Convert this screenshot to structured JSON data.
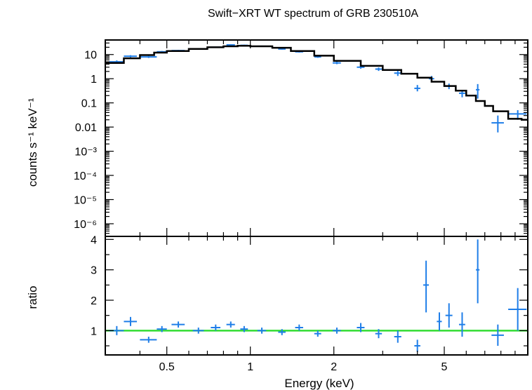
{
  "colors": {
    "data": "#1f7ee8",
    "model": "#000000",
    "unity": "#33dd33",
    "axes": "#000000"
  },
  "chart_data": [
    {
      "type": "scatter",
      "title": "Swift−XRT WT spectrum of GRB 230510A",
      "xlabel": "Energy (keV)",
      "ylabel": "counts s⁻¹ keV⁻¹",
      "x_scale": "log",
      "y_scale": "log",
      "xlim": [
        0.3,
        10
      ],
      "ylim": [
        3e-07,
        40
      ],
      "x_ticks": [
        {
          "value": 0.5,
          "label": "0.5"
        },
        {
          "value": 1,
          "label": "1"
        },
        {
          "value": 2,
          "label": "2"
        },
        {
          "value": 5,
          "label": "5"
        }
      ],
      "y_ticks": [
        {
          "value": 10,
          "label": "10"
        },
        {
          "value": 1,
          "label": "1"
        },
        {
          "value": 0.1,
          "label": "0.1"
        },
        {
          "value": 0.01,
          "label": "0.01"
        },
        {
          "value": 0.001,
          "label": "10⁻³"
        },
        {
          "value": 0.0001,
          "label": "10⁻⁴"
        },
        {
          "value": 1e-05,
          "label": "10⁻⁵"
        },
        {
          "value": 1e-06,
          "label": "10⁻⁶"
        }
      ],
      "series": [
        {
          "kind": "data",
          "points": [
            {
              "x": 0.33,
              "y": 5.0,
              "xlo": 0.31,
              "xhi": 0.35,
              "ylo": 4.3,
              "yhi": 5.7
            },
            {
              "x": 0.37,
              "y": 8.5,
              "xlo": 0.35,
              "xhi": 0.39,
              "ylo": 7.6,
              "yhi": 9.4
            },
            {
              "x": 0.43,
              "y": 8.0,
              "xlo": 0.4,
              "xhi": 0.46,
              "ylo": 7.2,
              "yhi": 8.8
            },
            {
              "x": 0.48,
              "y": 13.0,
              "xlo": 0.46,
              "xhi": 0.5,
              "ylo": 12.0,
              "yhi": 14.0
            },
            {
              "x": 0.55,
              "y": 14.5,
              "xlo": 0.52,
              "xhi": 0.58,
              "ylo": 13.5,
              "yhi": 15.5
            },
            {
              "x": 0.65,
              "y": 17.0,
              "xlo": 0.62,
              "xhi": 0.68,
              "ylo": 16.0,
              "yhi": 18.0
            },
            {
              "x": 0.75,
              "y": 20.0,
              "xlo": 0.72,
              "xhi": 0.78,
              "ylo": 19.0,
              "yhi": 21.0
            },
            {
              "x": 0.85,
              "y": 25.0,
              "xlo": 0.82,
              "xhi": 0.88,
              "ylo": 23.5,
              "yhi": 26.5
            },
            {
              "x": 0.95,
              "y": 24.0,
              "xlo": 0.92,
              "xhi": 0.98,
              "ylo": 22.5,
              "yhi": 25.5
            },
            {
              "x": 1.1,
              "y": 22.0,
              "xlo": 1.06,
              "xhi": 1.14,
              "ylo": 20.5,
              "yhi": 23.5
            },
            {
              "x": 1.3,
              "y": 17.0,
              "xlo": 1.26,
              "xhi": 1.34,
              "ylo": 16.0,
              "yhi": 18.0
            },
            {
              "x": 1.5,
              "y": 13.0,
              "xlo": 1.45,
              "xhi": 1.55,
              "ylo": 12.0,
              "yhi": 14.0
            },
            {
              "x": 1.75,
              "y": 8.0,
              "xlo": 1.7,
              "xhi": 1.8,
              "ylo": 7.3,
              "yhi": 8.7
            },
            {
              "x": 2.05,
              "y": 4.5,
              "xlo": 1.98,
              "xhi": 2.12,
              "ylo": 4.0,
              "yhi": 5.0
            },
            {
              "x": 2.5,
              "y": 3.0,
              "xlo": 2.42,
              "xhi": 2.58,
              "ylo": 2.6,
              "yhi": 3.4
            },
            {
              "x": 2.9,
              "y": 2.5,
              "xlo": 2.82,
              "xhi": 2.98,
              "ylo": 2.1,
              "yhi": 2.9
            },
            {
              "x": 3.4,
              "y": 1.7,
              "xlo": 3.3,
              "xhi": 3.5,
              "ylo": 1.3,
              "yhi": 2.1
            },
            {
              "x": 4.0,
              "y": 0.4,
              "xlo": 3.9,
              "xhi": 4.1,
              "ylo": 0.3,
              "yhi": 0.55
            },
            {
              "x": 4.5,
              "y": 1.0,
              "xlo": 4.4,
              "xhi": 4.6,
              "ylo": 0.75,
              "yhi": 1.3
            },
            {
              "x": 5.2,
              "y": 0.5,
              "xlo": 5.05,
              "xhi": 5.35,
              "ylo": 0.37,
              "yhi": 0.63
            },
            {
              "x": 5.8,
              "y": 0.25,
              "xlo": 5.65,
              "xhi": 5.95,
              "ylo": 0.17,
              "yhi": 0.33
            },
            {
              "x": 6.6,
              "y": 0.35,
              "xlo": 6.5,
              "xhi": 6.7,
              "ylo": 0.15,
              "yhi": 0.6
            },
            {
              "x": 7.8,
              "y": 0.015,
              "xlo": 7.4,
              "xhi": 8.2,
              "ylo": 0.006,
              "yhi": 0.03
            },
            {
              "x": 9.2,
              "y": 0.035,
              "xlo": 8.5,
              "xhi": 9.9,
              "ylo": 0.02,
              "yhi": 0.05
            }
          ]
        },
        {
          "kind": "model",
          "points": [
            {
              "x": 0.3,
              "y": 4.5
            },
            {
              "x": 0.35,
              "y": 7.0
            },
            {
              "x": 0.4,
              "y": 9.5
            },
            {
              "x": 0.45,
              "y": 12.0
            },
            {
              "x": 0.5,
              "y": 14.0
            },
            {
              "x": 0.6,
              "y": 17.0
            },
            {
              "x": 0.7,
              "y": 20.0
            },
            {
              "x": 0.8,
              "y": 22.0
            },
            {
              "x": 0.9,
              "y": 23.0
            },
            {
              "x": 1.0,
              "y": 22.0
            },
            {
              "x": 1.2,
              "y": 19.0
            },
            {
              "x": 1.4,
              "y": 14.0
            },
            {
              "x": 1.7,
              "y": 9.0
            },
            {
              "x": 2.0,
              "y": 5.5
            },
            {
              "x": 2.5,
              "y": 3.4
            },
            {
              "x": 3.0,
              "y": 2.3
            },
            {
              "x": 3.5,
              "y": 1.6
            },
            {
              "x": 4.0,
              "y": 1.1
            },
            {
              "x": 4.5,
              "y": 0.75
            },
            {
              "x": 5.0,
              "y": 0.5
            },
            {
              "x": 5.5,
              "y": 0.32
            },
            {
              "x": 6.0,
              "y": 0.2
            },
            {
              "x": 6.5,
              "y": 0.12
            },
            {
              "x": 7.0,
              "y": 0.075
            },
            {
              "x": 7.5,
              "y": 0.045
            },
            {
              "x": 8.5,
              "y": 0.022
            },
            {
              "x": 9.5,
              "y": 0.02
            }
          ]
        }
      ]
    },
    {
      "type": "scatter",
      "xlabel": "Energy (keV)",
      "ylabel": "ratio",
      "x_scale": "log",
      "xlim": [
        0.3,
        10
      ],
      "ylim": [
        0.2,
        4.1
      ],
      "y_ticks": [
        {
          "value": 1,
          "label": "1"
        },
        {
          "value": 2,
          "label": "2"
        },
        {
          "value": 3,
          "label": "3"
        },
        {
          "value": 4,
          "label": "4"
        }
      ],
      "reference_line": 1,
      "series": [
        {
          "kind": "data",
          "points": [
            {
              "x": 0.33,
              "y": 1.0,
              "xlo": 0.31,
              "xhi": 0.35,
              "ylo": 0.85,
              "yhi": 1.15
            },
            {
              "x": 0.37,
              "y": 1.3,
              "xlo": 0.35,
              "xhi": 0.39,
              "ylo": 1.15,
              "yhi": 1.45
            },
            {
              "x": 0.43,
              "y": 0.7,
              "xlo": 0.4,
              "xhi": 0.46,
              "ylo": 0.6,
              "yhi": 0.8
            },
            {
              "x": 0.48,
              "y": 1.05,
              "xlo": 0.46,
              "xhi": 0.5,
              "ylo": 0.95,
              "yhi": 1.15
            },
            {
              "x": 0.55,
              "y": 1.2,
              "xlo": 0.52,
              "xhi": 0.58,
              "ylo": 1.1,
              "yhi": 1.3
            },
            {
              "x": 0.65,
              "y": 1.0,
              "xlo": 0.62,
              "xhi": 0.68,
              "ylo": 0.9,
              "yhi": 1.1
            },
            {
              "x": 0.75,
              "y": 1.1,
              "xlo": 0.72,
              "xhi": 0.78,
              "ylo": 1.0,
              "yhi": 1.2
            },
            {
              "x": 0.85,
              "y": 1.2,
              "xlo": 0.82,
              "xhi": 0.88,
              "ylo": 1.1,
              "yhi": 1.3
            },
            {
              "x": 0.95,
              "y": 1.05,
              "xlo": 0.92,
              "xhi": 0.98,
              "ylo": 0.95,
              "yhi": 1.15
            },
            {
              "x": 1.1,
              "y": 1.0,
              "xlo": 1.06,
              "xhi": 1.14,
              "ylo": 0.9,
              "yhi": 1.1
            },
            {
              "x": 1.3,
              "y": 0.95,
              "xlo": 1.26,
              "xhi": 1.34,
              "ylo": 0.85,
              "yhi": 1.05
            },
            {
              "x": 1.5,
              "y": 1.1,
              "xlo": 1.45,
              "xhi": 1.55,
              "ylo": 1.0,
              "yhi": 1.2
            },
            {
              "x": 1.75,
              "y": 0.9,
              "xlo": 1.7,
              "xhi": 1.8,
              "ylo": 0.8,
              "yhi": 1.0
            },
            {
              "x": 2.05,
              "y": 1.0,
              "xlo": 1.98,
              "xhi": 2.12,
              "ylo": 0.9,
              "yhi": 1.1
            },
            {
              "x": 2.5,
              "y": 1.1,
              "xlo": 2.42,
              "xhi": 2.58,
              "ylo": 0.95,
              "yhi": 1.25
            },
            {
              "x": 2.9,
              "y": 0.9,
              "xlo": 2.82,
              "xhi": 2.98,
              "ylo": 0.75,
              "yhi": 1.05
            },
            {
              "x": 3.4,
              "y": 0.8,
              "xlo": 3.3,
              "xhi": 3.5,
              "ylo": 0.6,
              "yhi": 1.0
            },
            {
              "x": 4.0,
              "y": 0.5,
              "xlo": 3.9,
              "xhi": 4.1,
              "ylo": 0.3,
              "yhi": 0.7
            },
            {
              "x": 4.3,
              "y": 2.5,
              "xlo": 4.2,
              "xhi": 4.4,
              "ylo": 1.6,
              "yhi": 3.3
            },
            {
              "x": 4.8,
              "y": 1.3,
              "xlo": 4.7,
              "xhi": 4.9,
              "ylo": 1.0,
              "yhi": 1.6
            },
            {
              "x": 5.2,
              "y": 1.5,
              "xlo": 5.05,
              "xhi": 5.35,
              "ylo": 1.1,
              "yhi": 1.9
            },
            {
              "x": 5.8,
              "y": 1.2,
              "xlo": 5.65,
              "xhi": 5.95,
              "ylo": 0.8,
              "yhi": 1.6
            },
            {
              "x": 6.6,
              "y": 3.0,
              "xlo": 6.5,
              "xhi": 6.7,
              "ylo": 1.9,
              "yhi": 4.0
            },
            {
              "x": 7.8,
              "y": 0.85,
              "xlo": 7.4,
              "xhi": 8.2,
              "ylo": 0.5,
              "yhi": 1.2
            },
            {
              "x": 9.2,
              "y": 1.7,
              "xlo": 8.5,
              "xhi": 9.9,
              "ylo": 1.0,
              "yhi": 2.4
            }
          ]
        }
      ]
    }
  ]
}
